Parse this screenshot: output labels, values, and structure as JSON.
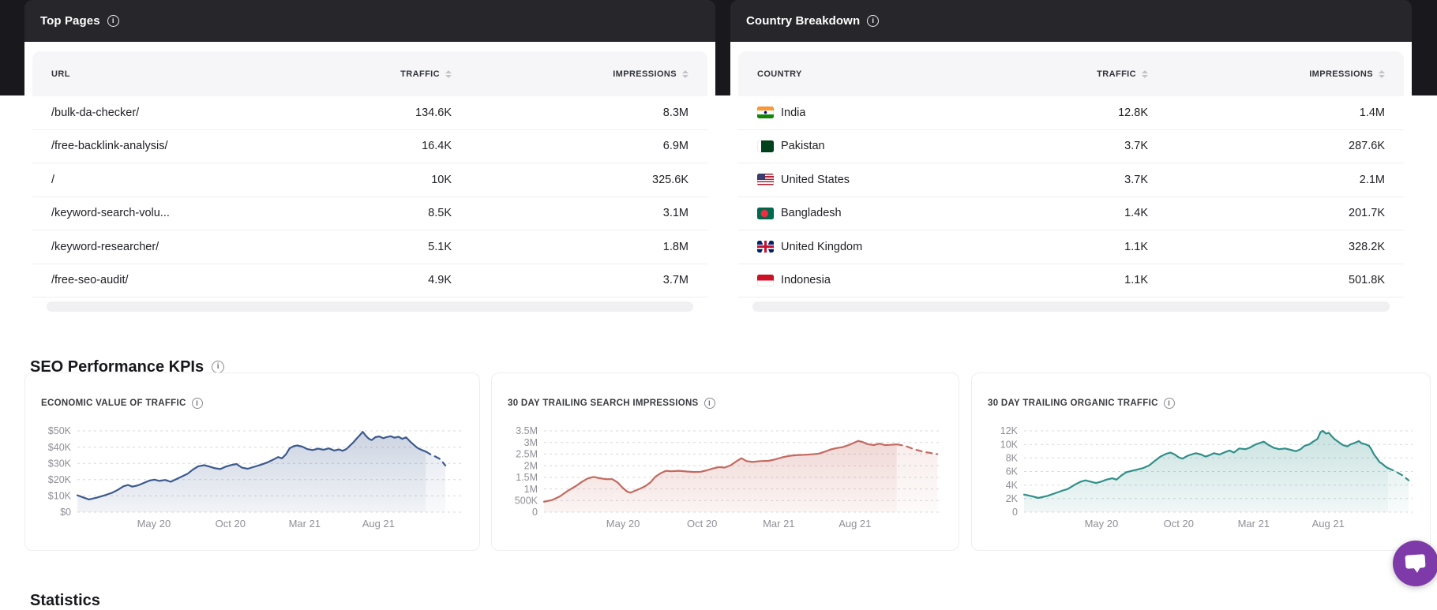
{
  "theme": {
    "band_color": "#18181d",
    "card_header_color": "#26262b",
    "table_header_bg": "#f6f6f8",
    "chat_accent": "#7d3aa8"
  },
  "top_pages": {
    "title": "Top Pages",
    "columns": [
      "URL",
      "TRAFFIC",
      "IMPRESSIONS"
    ],
    "rows": [
      {
        "url": "/bulk-da-checker/",
        "traffic": "134.6K",
        "impressions": "8.3M"
      },
      {
        "url": "/free-backlink-analysis/",
        "traffic": "16.4K",
        "impressions": "6.9M"
      },
      {
        "url": "/",
        "traffic": "10K",
        "impressions": "325.6K"
      },
      {
        "url": "/keyword-search-volu...",
        "traffic": "8.5K",
        "impressions": "3.1M"
      },
      {
        "url": "/keyword-researcher/",
        "traffic": "5.1K",
        "impressions": "1.8M"
      },
      {
        "url": "/free-seo-audit/",
        "traffic": "4.9K",
        "impressions": "3.7M"
      }
    ]
  },
  "country_breakdown": {
    "title": "Country Breakdown",
    "columns": [
      "COUNTRY",
      "TRAFFIC",
      "IMPRESSIONS"
    ],
    "rows": [
      {
        "country": "India",
        "flag": "india",
        "traffic": "12.8K",
        "impressions": "1.4M"
      },
      {
        "country": "Pakistan",
        "flag": "pakistan",
        "traffic": "3.7K",
        "impressions": "287.6K"
      },
      {
        "country": "United States",
        "flag": "usa",
        "traffic": "3.7K",
        "impressions": "2.1M"
      },
      {
        "country": "Bangladesh",
        "flag": "bangladesh",
        "traffic": "1.4K",
        "impressions": "201.7K"
      },
      {
        "country": "United Kingdom",
        "flag": "uk",
        "traffic": "1.1K",
        "impressions": "328.2K"
      },
      {
        "country": "Indonesia",
        "flag": "indonesia",
        "traffic": "1.1K",
        "impressions": "501.8K"
      }
    ]
  },
  "kpi_section": {
    "title": "SEO Performance KPIs"
  },
  "statistics_section": {
    "title": "Statistics"
  },
  "chart_data": [
    {
      "type": "area",
      "title": "ECONOMIC VALUE OF TRAFFIC",
      "y_unit": "USD",
      "y_max": 50,
      "y_ticks": [
        {
          "v": 50,
          "label": "$50K"
        },
        {
          "v": 40,
          "label": "$40K"
        },
        {
          "v": 30,
          "label": "$30K"
        },
        {
          "v": 20,
          "label": "$20K"
        },
        {
          "v": 10,
          "label": "$10K"
        },
        {
          "v": 0,
          "label": "$0"
        }
      ],
      "x_ticks": [
        {
          "pos": 0.199,
          "label": "May 20"
        },
        {
          "pos": 0.398,
          "label": "Oct 20"
        },
        {
          "pos": 0.591,
          "label": "Mar 21"
        },
        {
          "pos": 0.783,
          "label": "Aug 21"
        }
      ],
      "line_color": "#3c5a8d",
      "dash_from": 0.906,
      "series": [
        [
          0,
          10.4
        ],
        [
          0.015,
          9.1
        ],
        [
          0.03,
          7.8
        ],
        [
          0.05,
          8.9
        ],
        [
          0.07,
          10.3
        ],
        [
          0.09,
          11.9
        ],
        [
          0.105,
          13.7
        ],
        [
          0.12,
          15.9
        ],
        [
          0.132,
          16.7
        ],
        [
          0.143,
          15.7
        ],
        [
          0.158,
          16.5
        ],
        [
          0.172,
          17.9
        ],
        [
          0.186,
          19.3
        ],
        [
          0.2,
          20
        ],
        [
          0.214,
          19.2
        ],
        [
          0.228,
          19.8
        ],
        [
          0.243,
          18.7
        ],
        [
          0.258,
          20.4
        ],
        [
          0.272,
          22
        ],
        [
          0.287,
          23.7
        ],
        [
          0.3,
          26.1
        ],
        [
          0.314,
          28.2
        ],
        [
          0.33,
          28.9
        ],
        [
          0.344,
          28
        ],
        [
          0.358,
          27
        ],
        [
          0.372,
          26.5
        ],
        [
          0.386,
          28
        ],
        [
          0.4,
          29
        ],
        [
          0.414,
          29.6
        ],
        [
          0.428,
          27.4
        ],
        [
          0.443,
          26.7
        ],
        [
          0.46,
          27.9
        ],
        [
          0.478,
          29.2
        ],
        [
          0.495,
          30.7
        ],
        [
          0.51,
          32.4
        ],
        [
          0.522,
          33.9
        ],
        [
          0.532,
          33.1
        ],
        [
          0.542,
          35.5
        ],
        [
          0.552,
          39.2
        ],
        [
          0.562,
          40.6
        ],
        [
          0.572,
          41
        ],
        [
          0.585,
          40.3
        ],
        [
          0.598,
          38.8
        ],
        [
          0.612,
          38.2
        ],
        [
          0.626,
          39.1
        ],
        [
          0.64,
          38.4
        ],
        [
          0.654,
          39.2
        ],
        [
          0.668,
          37.9
        ],
        [
          0.68,
          38.6
        ],
        [
          0.69,
          37.7
        ],
        [
          0.7,
          38.9
        ],
        [
          0.71,
          41.2
        ],
        [
          0.718,
          43
        ],
        [
          0.726,
          45.2
        ],
        [
          0.733,
          47
        ],
        [
          0.738,
          48.3
        ],
        [
          0.742,
          49.4
        ],
        [
          0.75,
          47
        ],
        [
          0.758,
          45.2
        ],
        [
          0.765,
          44.3
        ],
        [
          0.775,
          46.1
        ],
        [
          0.785,
          46.6
        ],
        [
          0.795,
          45.5
        ],
        [
          0.805,
          46.2
        ],
        [
          0.815,
          46.7
        ],
        [
          0.825,
          45.8
        ],
        [
          0.835,
          46.4
        ],
        [
          0.845,
          45.1
        ],
        [
          0.855,
          46
        ],
        [
          0.865,
          43.5
        ],
        [
          0.875,
          41.4
        ],
        [
          0.885,
          39.4
        ],
        [
          0.895,
          38.3
        ],
        [
          0.906,
          37.3
        ],
        [
          0.918,
          35.6
        ],
        [
          0.93,
          34.3
        ],
        [
          0.942,
          32.8
        ],
        [
          0.95,
          30.8
        ],
        [
          0.957,
          28.7
        ]
      ]
    },
    {
      "type": "area",
      "title": "30 DAY TRAILING SEARCH IMPRESSIONS",
      "y_unit": "impressions",
      "y_max": 3.5,
      "y_ticks": [
        {
          "v": 3.5,
          "label": "3.5M"
        },
        {
          "v": 3,
          "label": "3M"
        },
        {
          "v": 2.5,
          "label": "2.5M"
        },
        {
          "v": 2,
          "label": "2M"
        },
        {
          "v": 1.5,
          "label": "1.5M"
        },
        {
          "v": 1,
          "label": "1M"
        },
        {
          "v": 0.5,
          "label": "500K"
        },
        {
          "v": 0,
          "label": "0"
        }
      ],
      "x_ticks": [
        {
          "pos": 0.199,
          "label": "May 20"
        },
        {
          "pos": 0.398,
          "label": "Oct 20"
        },
        {
          "pos": 0.591,
          "label": "Mar 21"
        },
        {
          "pos": 0.783,
          "label": "Aug 21"
        }
      ],
      "line_color": "#c4695f",
      "dash_from": 0.888,
      "series": [
        [
          0,
          0.45
        ],
        [
          0.02,
          0.52
        ],
        [
          0.04,
          0.68
        ],
        [
          0.06,
          0.92
        ],
        [
          0.08,
          1.12
        ],
        [
          0.095,
          1.3
        ],
        [
          0.11,
          1.45
        ],
        [
          0.125,
          1.52
        ],
        [
          0.14,
          1.46
        ],
        [
          0.155,
          1.42
        ],
        [
          0.172,
          1.42
        ],
        [
          0.185,
          1.28
        ],
        [
          0.198,
          1.05
        ],
        [
          0.21,
          0.88
        ],
        [
          0.218,
          0.84
        ],
        [
          0.23,
          0.93
        ],
        [
          0.243,
          1.02
        ],
        [
          0.255,
          1.12
        ],
        [
          0.268,
          1.28
        ],
        [
          0.28,
          1.52
        ],
        [
          0.294,
          1.68
        ],
        [
          0.307,
          1.78
        ],
        [
          0.32,
          1.76
        ],
        [
          0.34,
          1.78
        ],
        [
          0.36,
          1.75
        ],
        [
          0.378,
          1.73
        ],
        [
          0.395,
          1.74
        ],
        [
          0.41,
          1.8
        ],
        [
          0.425,
          1.88
        ],
        [
          0.44,
          1.94
        ],
        [
          0.455,
          1.92
        ],
        [
          0.47,
          2.02
        ],
        [
          0.485,
          2.2
        ],
        [
          0.497,
          2.32
        ],
        [
          0.51,
          2.2
        ],
        [
          0.525,
          2.16
        ],
        [
          0.545,
          2.2
        ],
        [
          0.565,
          2.21
        ],
        [
          0.582,
          2.27
        ],
        [
          0.6,
          2.36
        ],
        [
          0.62,
          2.43
        ],
        [
          0.64,
          2.46
        ],
        [
          0.658,
          2.47
        ],
        [
          0.675,
          2.49
        ],
        [
          0.692,
          2.52
        ],
        [
          0.708,
          2.61
        ],
        [
          0.722,
          2.7
        ],
        [
          0.737,
          2.76
        ],
        [
          0.752,
          2.8
        ],
        [
          0.767,
          2.89
        ],
        [
          0.781,
          2.99
        ],
        [
          0.791,
          3.07
        ],
        [
          0.802,
          3.02
        ],
        [
          0.815,
          2.93
        ],
        [
          0.83,
          2.89
        ],
        [
          0.845,
          2.95
        ],
        [
          0.858,
          2.89
        ],
        [
          0.872,
          2.9
        ],
        [
          0.888,
          2.92
        ],
        [
          0.91,
          2.85
        ],
        [
          0.93,
          2.72
        ],
        [
          0.955,
          2.6
        ],
        [
          0.99,
          2.5
        ]
      ]
    },
    {
      "type": "area",
      "title": "30 DAY TRAILING ORGANIC TRAFFIC",
      "y_unit": "visits",
      "y_max": 12,
      "y_ticks": [
        {
          "v": 12,
          "label": "12K"
        },
        {
          "v": 10,
          "label": "10K"
        },
        {
          "v": 8,
          "label": "8K"
        },
        {
          "v": 6,
          "label": "6K"
        },
        {
          "v": 4,
          "label": "4K"
        },
        {
          "v": 2,
          "label": "2K"
        },
        {
          "v": 0,
          "label": "0"
        }
      ],
      "x_ticks": [
        {
          "pos": 0.199,
          "label": "May 20"
        },
        {
          "pos": 0.398,
          "label": "Oct 20"
        },
        {
          "pos": 0.591,
          "label": "Mar 21"
        },
        {
          "pos": 0.783,
          "label": "Aug 21"
        }
      ],
      "line_color": "#2f8f88",
      "dash_from": 0.937,
      "series": [
        [
          0,
          2.6
        ],
        [
          0.02,
          2.35
        ],
        [
          0.037,
          2.1
        ],
        [
          0.06,
          2.4
        ],
        [
          0.08,
          2.8
        ],
        [
          0.1,
          3.2
        ],
        [
          0.112,
          3.4
        ],
        [
          0.132,
          4.1
        ],
        [
          0.146,
          4.5
        ],
        [
          0.158,
          4.7
        ],
        [
          0.172,
          4.5
        ],
        [
          0.185,
          4.3
        ],
        [
          0.198,
          4.5
        ],
        [
          0.212,
          4.8
        ],
        [
          0.227,
          5
        ],
        [
          0.238,
          4.8
        ],
        [
          0.25,
          5.4
        ],
        [
          0.263,
          5.9
        ],
        [
          0.278,
          6.1
        ],
        [
          0.292,
          6.3
        ],
        [
          0.306,
          6.5
        ],
        [
          0.322,
          6.9
        ],
        [
          0.335,
          7.5
        ],
        [
          0.351,
          8.2
        ],
        [
          0.365,
          8.6
        ],
        [
          0.377,
          8.8
        ],
        [
          0.388,
          8.5
        ],
        [
          0.398,
          8.1
        ],
        [
          0.408,
          7.9
        ],
        [
          0.42,
          8.3
        ],
        [
          0.43,
          8.5
        ],
        [
          0.442,
          8.7
        ],
        [
          0.456,
          8.5
        ],
        [
          0.467,
          8.2
        ],
        [
          0.477,
          8.4
        ],
        [
          0.489,
          8.7
        ],
        [
          0.503,
          8.5
        ],
        [
          0.519,
          8.9
        ],
        [
          0.529,
          9.1
        ],
        [
          0.54,
          8.8
        ],
        [
          0.554,
          9.4
        ],
        [
          0.57,
          9.3
        ],
        [
          0.58,
          9.5
        ],
        [
          0.596,
          10
        ],
        [
          0.606,
          10.2
        ],
        [
          0.617,
          10.4
        ],
        [
          0.627,
          10
        ],
        [
          0.643,
          9.5
        ],
        [
          0.657,
          9.3
        ],
        [
          0.672,
          9.4
        ],
        [
          0.686,
          9.2
        ],
        [
          0.7,
          9
        ],
        [
          0.712,
          9.3
        ],
        [
          0.722,
          9.8
        ],
        [
          0.734,
          10
        ],
        [
          0.744,
          10.4
        ],
        [
          0.755,
          10.8
        ],
        [
          0.763,
          11.8
        ],
        [
          0.769,
          12
        ],
        [
          0.777,
          11.6
        ],
        [
          0.785,
          11.7
        ],
        [
          0.792,
          11.2
        ],
        [
          0.799,
          10.8
        ],
        [
          0.811,
          10.3
        ],
        [
          0.821,
          9.9
        ],
        [
          0.832,
          9.7
        ],
        [
          0.84,
          10
        ],
        [
          0.85,
          10.2
        ],
        [
          0.862,
          10.5
        ],
        [
          0.868,
          10.2
        ],
        [
          0.88,
          10
        ],
        [
          0.888,
          9.8
        ],
        [
          0.894,
          9.3
        ],
        [
          0.901,
          8.5
        ],
        [
          0.909,
          7.9
        ],
        [
          0.915,
          7.4
        ],
        [
          0.923,
          7.1
        ],
        [
          0.931,
          6.7
        ],
        [
          0.937,
          6.5
        ],
        [
          0.957,
          6
        ],
        [
          0.975,
          5.4
        ],
        [
          0.99,
          4.7
        ]
      ]
    }
  ]
}
